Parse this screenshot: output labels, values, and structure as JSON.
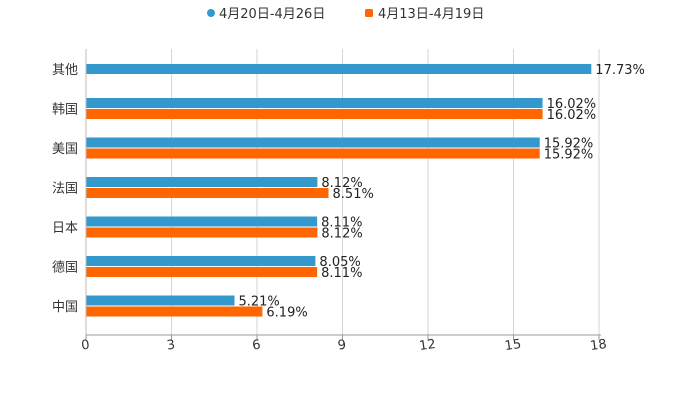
{
  "chart_data": {
    "type": "bar",
    "orientation": "horizontal",
    "categories": [
      "其他",
      "韩国",
      "美国",
      "法国",
      "日本",
      "德国",
      "中国"
    ],
    "series": [
      {
        "name": "4月20日-4月26日",
        "color": "#3399CC",
        "values": [
          17.73,
          16.02,
          15.92,
          8.12,
          8.11,
          8.05,
          5.21
        ],
        "labels": [
          "17.73%",
          "16.02%",
          "15.92%",
          "8.12%",
          "8.11%",
          "8.05%",
          "5.21%"
        ]
      },
      {
        "name": "4月13日-4月19日",
        "color": "#FF6600",
        "values": [
          null,
          16.02,
          15.92,
          8.51,
          8.12,
          8.11,
          6.19
        ],
        "labels": [
          null,
          "16.02%",
          "15.92%",
          "8.51%",
          "8.12%",
          "8.11%",
          "6.19%"
        ]
      }
    ],
    "xlim": [
      0,
      18
    ],
    "xticks": [
      0,
      3,
      6,
      9,
      12,
      15,
      18
    ],
    "xtick_labels": [
      "0",
      "3",
      "6",
      "9",
      "12",
      "15",
      "18"
    ],
    "grid": true,
    "legend_position": "top-center",
    "title": "",
    "xlabel": "",
    "ylabel": ""
  }
}
